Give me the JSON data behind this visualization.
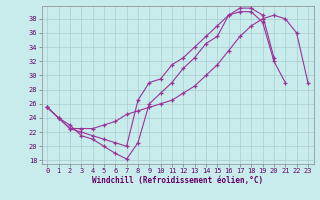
{
  "xlabel": "Windchill (Refroidissement éolien,°C)",
  "bg_color": "#c8ecec",
  "line_color": "#993399",
  "grid_color": "#aacccc",
  "xlim": [
    0,
    23
  ],
  "ylim": [
    18,
    39
  ],
  "xticks": [
    0,
    1,
    2,
    3,
    4,
    5,
    6,
    7,
    8,
    9,
    10,
    11,
    12,
    13,
    14,
    15,
    16,
    17,
    18,
    19,
    20,
    21,
    22,
    23
  ],
  "yticks": [
    18,
    20,
    22,
    24,
    26,
    28,
    30,
    32,
    34,
    36,
    38
  ],
  "line1_x": [
    0,
    1,
    2,
    3,
    4,
    5,
    6,
    7,
    8,
    9,
    10,
    11,
    12,
    13,
    14,
    15,
    16,
    17,
    18,
    19,
    20,
    21,
    22,
    23
  ],
  "line1_y": [
    25.5,
    24.0,
    22.5,
    22.5,
    22.5,
    23.0,
    23.5,
    24.5,
    25.0,
    25.5,
    26.0,
    26.5,
    27.5,
    28.5,
    30.0,
    31.5,
    33.5,
    35.5,
    37.0,
    38.0,
    38.5,
    38.0,
    36.0,
    29.0
  ],
  "line2_x": [
    0,
    1,
    2,
    3,
    4,
    5,
    6,
    7,
    8,
    9,
    10,
    11,
    12,
    13,
    14,
    15,
    16,
    17,
    18,
    19,
    20,
    21
  ],
  "line2_y": [
    25.5,
    24.0,
    23.0,
    21.5,
    21.0,
    20.0,
    19.0,
    18.2,
    20.5,
    26.0,
    27.5,
    29.0,
    31.0,
    32.5,
    34.5,
    35.5,
    38.5,
    39.0,
    39.0,
    37.5,
    32.0,
    29.0
  ],
  "line3_x": [
    0,
    1,
    2,
    3,
    4,
    5,
    6,
    7,
    8,
    9,
    10,
    11,
    12,
    13,
    14,
    15,
    16,
    17,
    18,
    19,
    20
  ],
  "line3_y": [
    25.5,
    24.0,
    22.5,
    22.0,
    21.5,
    21.0,
    20.5,
    20.0,
    26.5,
    29.0,
    29.5,
    31.5,
    32.5,
    34.0,
    35.5,
    37.0,
    38.5,
    39.5,
    39.5,
    38.5,
    32.5
  ]
}
